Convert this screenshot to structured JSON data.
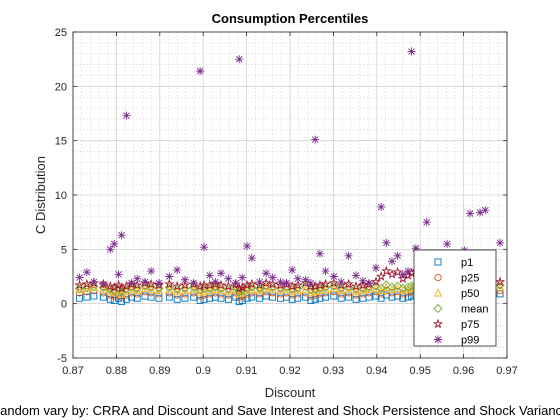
{
  "chart_data": {
    "type": "scatter",
    "title": "Consumption Percentiles",
    "xlabel": "Discount",
    "ylabel": "C Distribution",
    "caption": "Random vary by: CRRA and Discount and Save Interest and Shock Persistence and Shock Variance",
    "xlim": [
      0.87,
      0.97
    ],
    "ylim": [
      -5,
      25
    ],
    "xticks": [
      "0.87",
      "0.88",
      "0.89",
      "0.9",
      "0.91",
      "0.92",
      "0.93",
      "0.94",
      "0.95",
      "0.96",
      "0.97"
    ],
    "yticks": [
      "-5",
      "0",
      "5",
      "10",
      "15",
      "20",
      "25"
    ],
    "grid": true,
    "minor_grid": true,
    "legend_position": "bottom-right",
    "x": [
      0.8715,
      0.8732,
      0.8748,
      0.877,
      0.8786,
      0.8795,
      0.8805,
      0.8812,
      0.8823,
      0.8835,
      0.8848,
      0.8866,
      0.888,
      0.8898,
      0.8922,
      0.894,
      0.8958,
      0.8978,
      0.8993,
      0.9002,
      0.9015,
      0.9028,
      0.9041,
      0.9058,
      0.9075,
      0.9083,
      0.909,
      0.9101,
      0.9112,
      0.913,
      0.9145,
      0.916,
      0.9178,
      0.9192,
      0.9205,
      0.9218,
      0.9236,
      0.9248,
      0.9258,
      0.9269,
      0.9282,
      0.9301,
      0.9318,
      0.9335,
      0.9352,
      0.9368,
      0.9382,
      0.9398,
      0.941,
      0.9422,
      0.9435,
      0.9448,
      0.946,
      0.9472,
      0.948,
      0.949,
      0.9503,
      0.9515,
      0.9528,
      0.954,
      0.9553,
      0.9562,
      0.9571,
      0.958,
      0.9591,
      0.9602,
      0.9615,
      0.9626,
      0.9638,
      0.965,
      0.9664,
      0.9684
    ],
    "series": [
      {
        "name": "p1",
        "color": "#0072BD",
        "marker": "square",
        "values": [
          0.5,
          0.6,
          0.7,
          0.6,
          0.4,
          0.3,
          0.5,
          0.2,
          0.4,
          0.6,
          0.5,
          0.7,
          0.6,
          0.5,
          0.6,
          0.4,
          0.5,
          0.6,
          0.3,
          0.4,
          0.5,
          0.6,
          0.5,
          0.4,
          0.6,
          0.2,
          0.3,
          0.5,
          0.6,
          0.5,
          0.7,
          0.6,
          0.5,
          0.6,
          0.4,
          0.5,
          0.6,
          0.3,
          0.4,
          0.5,
          0.6,
          0.7,
          0.5,
          0.6,
          0.4,
          0.5,
          0.6,
          0.7,
          0.5,
          0.8,
          0.6,
          0.7,
          0.5,
          0.6,
          0.7,
          0.8,
          0.6,
          0.7,
          0.9,
          0.8,
          1.0,
          1.2,
          1.5,
          2.0,
          3.5,
          3.4,
          3.3,
          2.1,
          2.3,
          3.0,
          2.8,
          0.9
        ]
      },
      {
        "name": "p25",
        "color": "#D95319",
        "marker": "circle",
        "values": [
          1.0,
          1.1,
          1.2,
          1.0,
          0.8,
          0.7,
          0.9,
          0.6,
          0.8,
          1.0,
          0.9,
          1.1,
          1.0,
          0.9,
          1.0,
          0.8,
          0.9,
          1.0,
          0.7,
          0.8,
          0.9,
          1.0,
          0.9,
          0.8,
          1.0,
          0.6,
          0.7,
          0.9,
          1.0,
          0.9,
          1.1,
          1.0,
          0.9,
          1.0,
          0.8,
          0.9,
          1.0,
          0.7,
          0.8,
          0.9,
          1.0,
          1.1,
          0.9,
          1.0,
          0.8,
          0.9,
          1.0,
          1.1,
          0.9,
          1.2,
          1.0,
          1.1,
          0.9,
          1.0,
          1.1,
          1.2,
          1.0,
          1.1,
          1.3,
          1.2,
          1.4,
          1.6,
          1.9,
          2.4,
          3.7,
          3.6,
          3.5,
          2.5,
          2.7,
          3.3,
          3.1,
          1.2
        ]
      },
      {
        "name": "p50",
        "color": "#EDB120",
        "marker": "triangle",
        "values": [
          1.3,
          1.4,
          1.5,
          1.3,
          1.1,
          1.0,
          1.2,
          0.9,
          1.1,
          1.3,
          1.2,
          1.4,
          1.3,
          1.2,
          1.3,
          1.1,
          1.2,
          1.3,
          1.0,
          1.1,
          1.2,
          1.3,
          1.2,
          1.1,
          1.3,
          0.9,
          1.0,
          1.2,
          1.3,
          1.2,
          1.4,
          1.3,
          1.2,
          1.3,
          1.1,
          1.2,
          1.3,
          1.0,
          1.1,
          1.2,
          1.3,
          1.4,
          1.2,
          1.3,
          1.1,
          1.2,
          1.3,
          1.4,
          1.2,
          1.5,
          1.3,
          1.4,
          1.2,
          1.3,
          1.4,
          1.5,
          1.3,
          1.4,
          1.6,
          1.5,
          1.7,
          1.9,
          2.2,
          2.7,
          3.9,
          3.8,
          3.7,
          2.8,
          3.0,
          3.5,
          3.3,
          1.5
        ]
      },
      {
        "name": "mean",
        "color": "#77AC30",
        "marker": "diamond",
        "values": [
          1.4,
          1.5,
          1.6,
          1.5,
          1.3,
          1.2,
          1.4,
          1.1,
          1.3,
          1.5,
          1.4,
          1.6,
          1.5,
          1.4,
          1.5,
          1.3,
          1.4,
          1.5,
          1.3,
          1.4,
          1.4,
          1.5,
          1.4,
          1.3,
          1.5,
          1.1,
          1.2,
          1.4,
          1.5,
          1.4,
          1.6,
          1.5,
          1.4,
          1.5,
          1.3,
          1.4,
          1.6,
          1.3,
          1.3,
          1.4,
          1.5,
          1.6,
          1.4,
          1.5,
          1.3,
          1.4,
          1.5,
          1.6,
          1.4,
          1.7,
          1.5,
          1.6,
          1.4,
          1.5,
          1.6,
          1.7,
          1.5,
          1.6,
          1.8,
          1.7,
          1.9,
          2.1,
          2.4,
          2.9,
          4.0,
          3.9,
          3.8,
          3.0,
          3.2,
          3.6,
          3.4,
          1.7
        ]
      },
      {
        "name": "p75",
        "color": "#A2142F",
        "marker": "pentagram",
        "values": [
          1.7,
          1.8,
          1.9,
          1.8,
          1.6,
          1.5,
          1.7,
          1.4,
          1.6,
          1.8,
          1.7,
          1.9,
          1.8,
          1.7,
          1.8,
          1.6,
          1.7,
          1.8,
          1.6,
          1.7,
          1.7,
          1.8,
          1.7,
          1.6,
          1.8,
          1.4,
          1.5,
          1.7,
          1.8,
          1.7,
          1.9,
          1.8,
          1.7,
          1.8,
          1.6,
          1.7,
          1.9,
          1.6,
          1.6,
          1.7,
          1.8,
          1.9,
          1.7,
          1.8,
          1.6,
          1.7,
          1.8,
          2.0,
          2.5,
          3.0,
          2.7,
          2.9,
          2.3,
          2.6,
          2.8,
          3.0,
          2.6,
          2.8,
          3.0,
          2.9,
          3.1,
          3.3,
          3.5,
          3.6,
          4.1,
          4.0,
          3.9,
          3.4,
          3.6,
          3.8,
          3.7,
          2.0
        ]
      },
      {
        "name": "p99",
        "color": "#7E2F8E",
        "marker": "asterisk",
        "values": [
          2.4,
          2.9,
          2.0,
          1.8,
          5.0,
          5.5,
          2.7,
          6.3,
          17.3,
          1.9,
          2.3,
          2.0,
          3.0,
          1.9,
          2.5,
          3.1,
          2.2,
          1.9,
          21.4,
          5.2,
          2.6,
          2.0,
          2.8,
          2.3,
          1.9,
          22.5,
          2.4,
          5.3,
          4.2,
          2.0,
          2.8,
          2.4,
          2.0,
          1.9,
          3.1,
          2.3,
          2.2,
          1.9,
          15.1,
          4.6,
          3.0,
          2.5,
          2.0,
          4.4,
          2.6,
          2.1,
          1.9,
          3.3,
          8.9,
          5.6,
          3.9,
          4.4,
          2.7,
          3.0,
          23.2,
          5.1,
          3.6,
          7.5,
          3.9,
          3.0,
          3.4,
          5.5,
          4.2,
          2.9,
          3.8,
          4.9,
          8.3,
          2.8,
          8.4,
          8.6,
          4.0,
          5.6
        ]
      }
    ]
  }
}
